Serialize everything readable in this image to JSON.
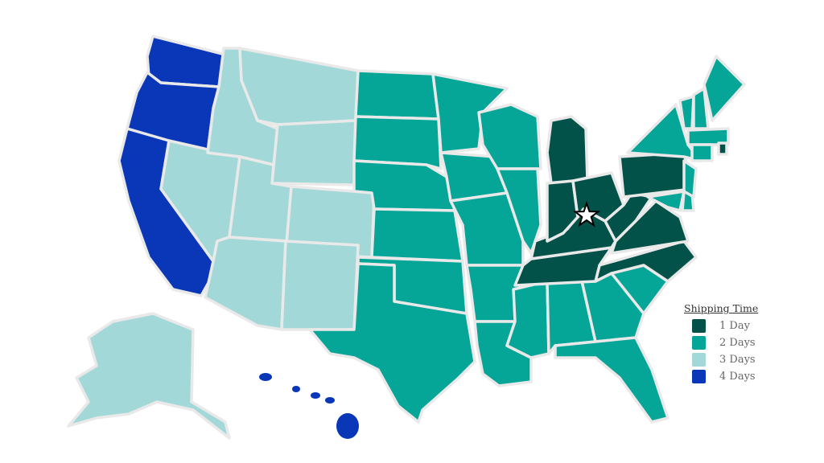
{
  "legend": {
    "title": "Shipping Time",
    "items": [
      {
        "label": "1 Day",
        "days": 1,
        "color": "#03524a"
      },
      {
        "label": "2 Days",
        "days": 2,
        "color": "#05a597"
      },
      {
        "label": "3 Days",
        "days": 3,
        "color": "#a3d8d8"
      },
      {
        "label": "4 Days",
        "days": 4,
        "color": "#0a37b8"
      }
    ]
  },
  "origin_marker": {
    "icon": "star-icon",
    "state": "KY"
  },
  "state_shipping_days": {
    "WA": 4,
    "OR": 4,
    "CA": 4,
    "HI": 4,
    "NV": 3,
    "ID": 3,
    "MT": 3,
    "WY": 3,
    "UT": 3,
    "CO": 3,
    "AZ": 3,
    "NM": 3,
    "AK": 3,
    "ND": 2,
    "SD": 2,
    "NE": 2,
    "KS": 2,
    "OK": 2,
    "TX": 2,
    "MN": 2,
    "IA": 2,
    "MO": 2,
    "AR": 2,
    "LA": 2,
    "WI": 2,
    "IL": 2,
    "MS": 2,
    "AL": 2,
    "GA": 2,
    "FL": 2,
    "SC": 2,
    "NY": 2,
    "NJ": 2,
    "MD": 2,
    "DE": 2,
    "VT": 2,
    "NH": 2,
    "ME": 2,
    "MA": 2,
    "CT": 2,
    "MI": 1,
    "IN": 1,
    "OH": 1,
    "KY": 1,
    "TN": 1,
    "WV": 1,
    "VA": 1,
    "PA": 1,
    "NC": 1,
    "RI": 1
  }
}
